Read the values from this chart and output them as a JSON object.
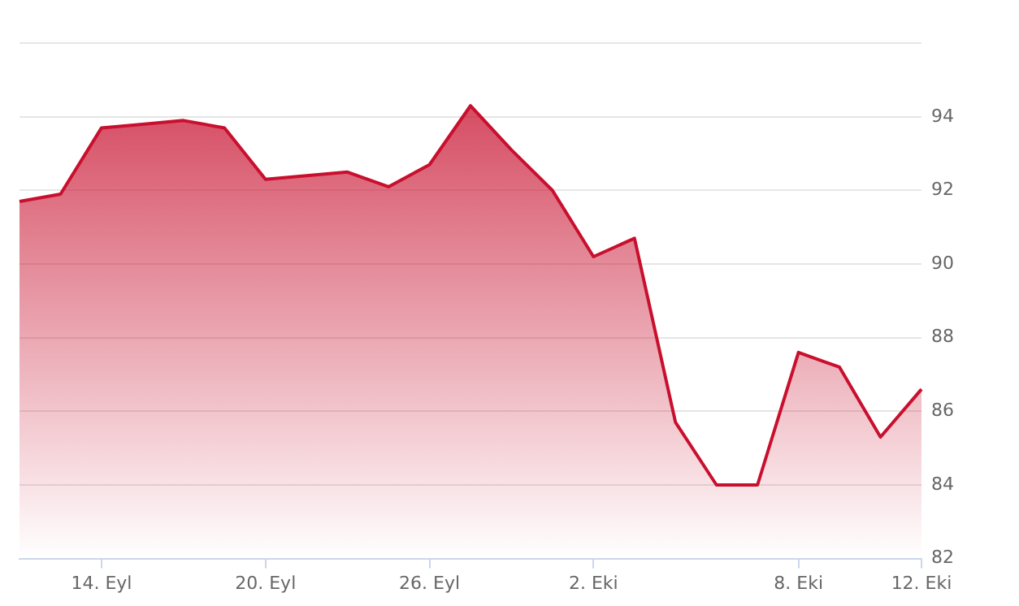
{
  "chart_data": {
    "type": "area",
    "categories": [
      null,
      null,
      "14. Eyl",
      null,
      null,
      null,
      "20. Eyl",
      null,
      null,
      null,
      "26. Eyl",
      null,
      null,
      null,
      "2. Eki",
      null,
      null,
      null,
      null,
      "8. Eki",
      null,
      null,
      "12. Eki"
    ],
    "series": [
      {
        "color": "#c8102e",
        "values": [
          91.7,
          91.9,
          93.7,
          93.8,
          93.9,
          93.7,
          92.3,
          92.4,
          92.5,
          92.1,
          92.7,
          94.3,
          93.1,
          92.0,
          90.2,
          90.7,
          85.7,
          84.0,
          84.0,
          87.6,
          87.2,
          85.3,
          86.6
        ]
      }
    ],
    "ylim": [
      82,
      96
    ],
    "yticks": [
      82,
      84,
      86,
      88,
      90,
      92,
      94,
      {
        "value": 96,
        "label": null
      }
    ],
    "grid": "y",
    "legend": false,
    "marker": "none"
  }
}
